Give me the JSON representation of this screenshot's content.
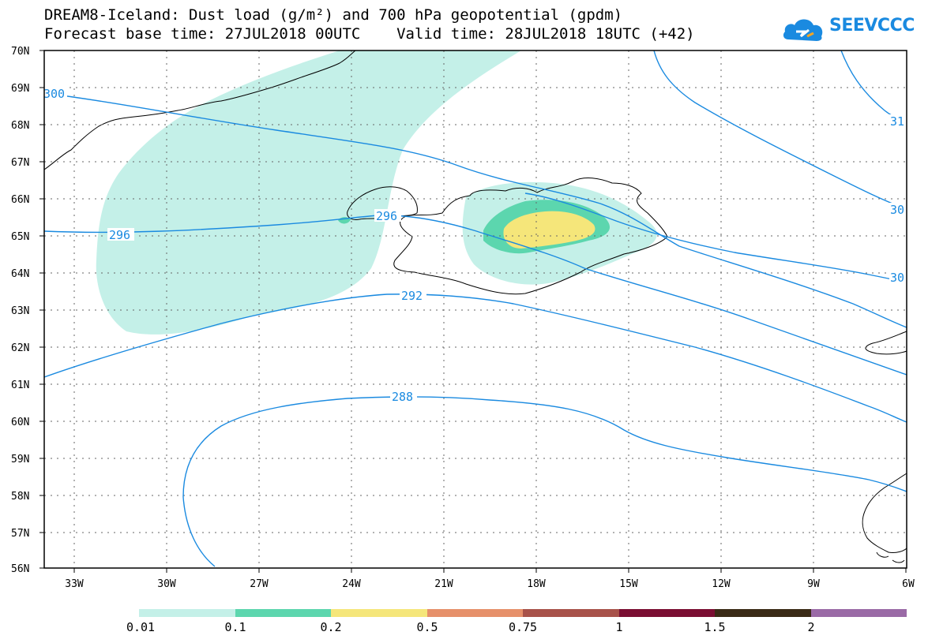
{
  "header": {
    "title_line1": "DREAM8-Iceland: Dust load (g/m²) and 700 hPa geopotential (gpdm)",
    "title_line2": "Forecast base time: 27JUL2018 00UTC    Valid time: 28JUL2018 18UTC (+42)",
    "logo_text": "SEEVCCC"
  },
  "map": {
    "lat_labels": [
      "70N",
      "69N",
      "68N",
      "67N",
      "66N",
      "65N",
      "64N",
      "63N",
      "62N",
      "61N",
      "60N",
      "59N",
      "58N",
      "57N",
      "56N"
    ],
    "lon_labels": [
      "33W",
      "30W",
      "27W",
      "24W",
      "21W",
      "18W",
      "15W",
      "12W",
      "9W",
      "6W"
    ],
    "contour_labels": [
      "300",
      "296",
      "296",
      "292",
      "288",
      "31",
      "30",
      "30"
    ],
    "colors": {
      "contour": "#1a8ae0",
      "dust_001": "#c4f0e8",
      "dust_01": "#5cd6ae",
      "dust_02": "#f5e67a"
    }
  },
  "legend": {
    "labels": [
      "0.01",
      "0.1",
      "0.2",
      "0.5",
      "0.75",
      "1",
      "1.5",
      "2"
    ],
    "colors": [
      "#c4f0e8",
      "#5cd6ae",
      "#f5e67a",
      "#e6906a",
      "#a8524a",
      "#7a0e32",
      "#3a2a16",
      "#9a6aa6"
    ]
  }
}
